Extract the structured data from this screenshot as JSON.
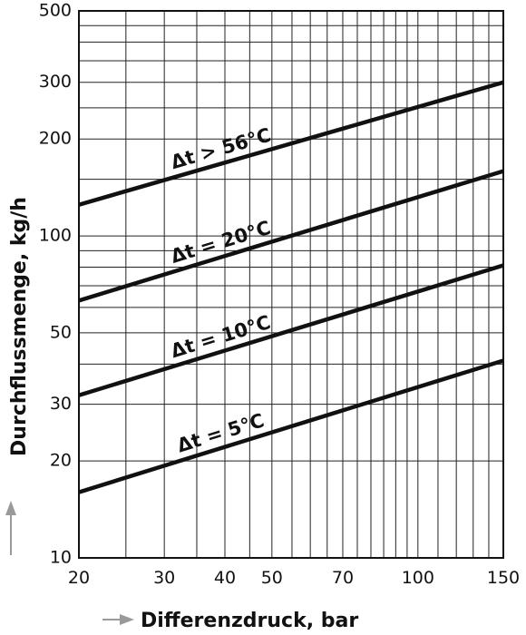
{
  "chart_data": {
    "type": "line",
    "title": "",
    "xlabel": "Differenzdruck, bar",
    "ylabel": "Durchflussmenge, kg/h",
    "xscale": "log",
    "yscale": "log",
    "xlim": [
      20,
      150
    ],
    "ylim": [
      10,
      500
    ],
    "grid": true,
    "x_ticks": [
      "20",
      "30",
      "40",
      "50",
      "70",
      "100",
      "150"
    ],
    "y_ticks": [
      "10",
      "20",
      "30",
      "50",
      "100",
      "200",
      "300",
      "500"
    ],
    "series": [
      {
        "name": "Δt > 56°C",
        "x": [
          20,
          150
        ],
        "y": [
          125,
          300
        ]
      },
      {
        "name": "Δt = 20°C",
        "x": [
          20,
          150
        ],
        "y": [
          63,
          159
        ]
      },
      {
        "name": "Δt = 10°C",
        "x": [
          20,
          150
        ],
        "y": [
          32,
          81
        ]
      },
      {
        "name": "Δt = 5°C",
        "x": [
          20,
          150
        ],
        "y": [
          16,
          41
        ]
      }
    ]
  }
}
